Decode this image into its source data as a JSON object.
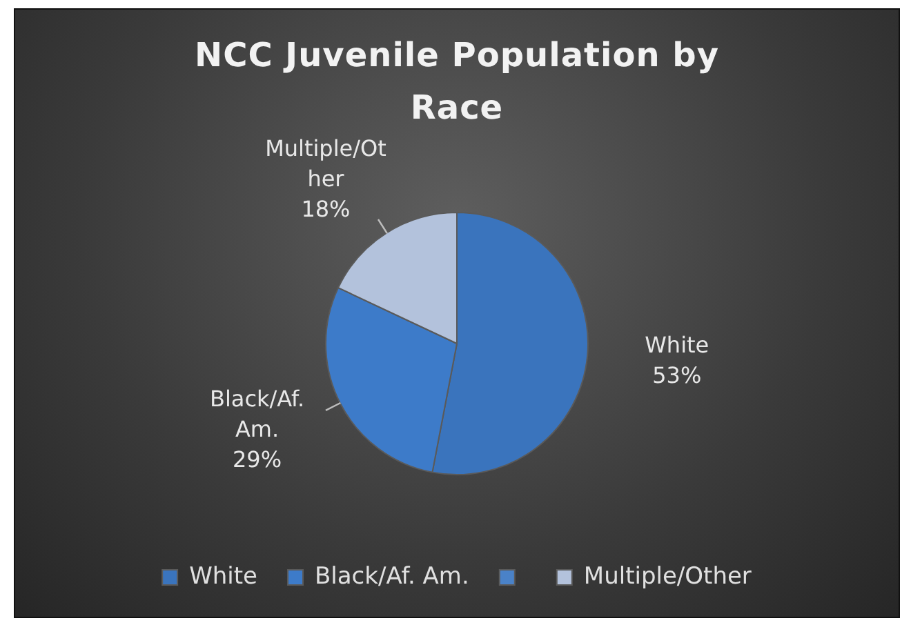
{
  "chart_data": {
    "type": "pie",
    "title": "NCC Juvenile Population by Race",
    "categories": [
      "White",
      "Black/Af. Am.",
      null,
      "Multiple/Other"
    ],
    "values": [
      53,
      29,
      0,
      18
    ],
    "value_labels": [
      "53%",
      "29%",
      null,
      "18%"
    ],
    "colors": [
      "#3a74bd",
      "#3d7bc9",
      "#4a82c8",
      "#b3c2dc"
    ],
    "legend": "bottom"
  }
}
